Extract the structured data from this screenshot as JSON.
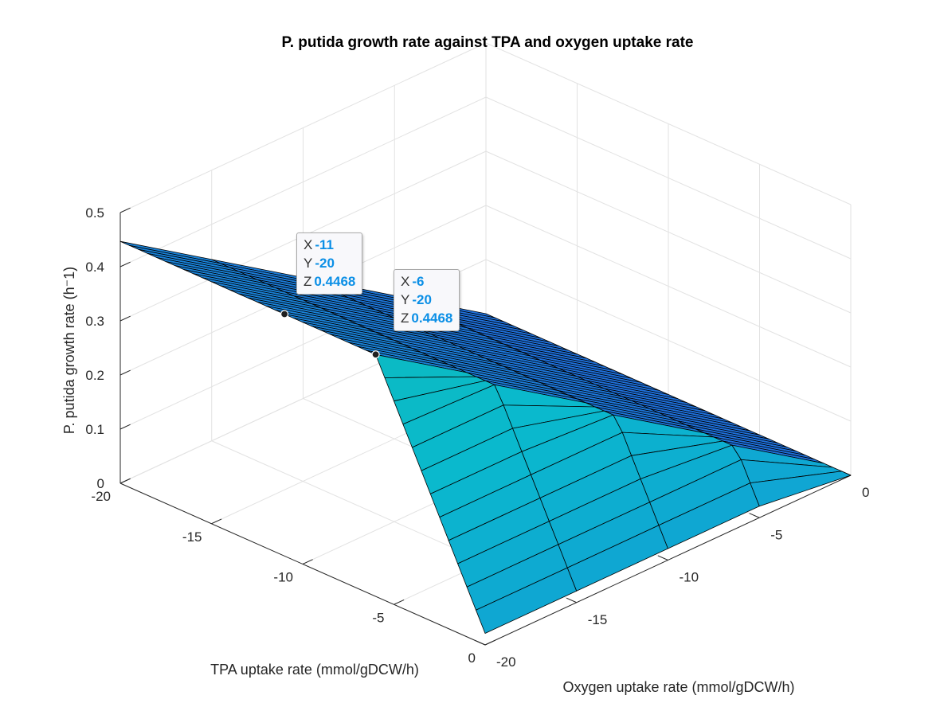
{
  "chart_data": {
    "type": "surface",
    "title": "P. putida growth rate against TPA and oxygen uptake rate",
    "xlabel": "TPA uptake rate (mmol/gDCW/h)",
    "ylabel": "Oxygen uptake rate (mmol/gDCW/h)",
    "zlabel": "P. putida growth rate (h⁻1)",
    "xlim": [
      -20,
      0
    ],
    "ylim": [
      -20,
      0
    ],
    "zlim": [
      0,
      0.5
    ],
    "x_ticks": [
      "-20",
      "-15",
      "-10",
      "-5",
      "0"
    ],
    "y_ticks": [
      "-20",
      "-15",
      "-10",
      "-5",
      "0"
    ],
    "z_ticks": [
      "0",
      "0.1",
      "0.2",
      "0.3",
      "0.4",
      "0.5"
    ],
    "grid": true,
    "colormap": "parula",
    "surface_description": "growth rate is linear in oxygen uptake (0.4468 at -20) for TPA uptake <= -6, then decreases as TPA uptake approaches 0",
    "datatips": [
      {
        "X": "-11",
        "Y": "-20",
        "Z": "0.4468"
      },
      {
        "X": "-6",
        "Y": "-20",
        "Z": "0.4468"
      }
    ]
  },
  "colors": {
    "surface_edge": "#000000",
    "datatip_value": "#0b8fe6"
  }
}
